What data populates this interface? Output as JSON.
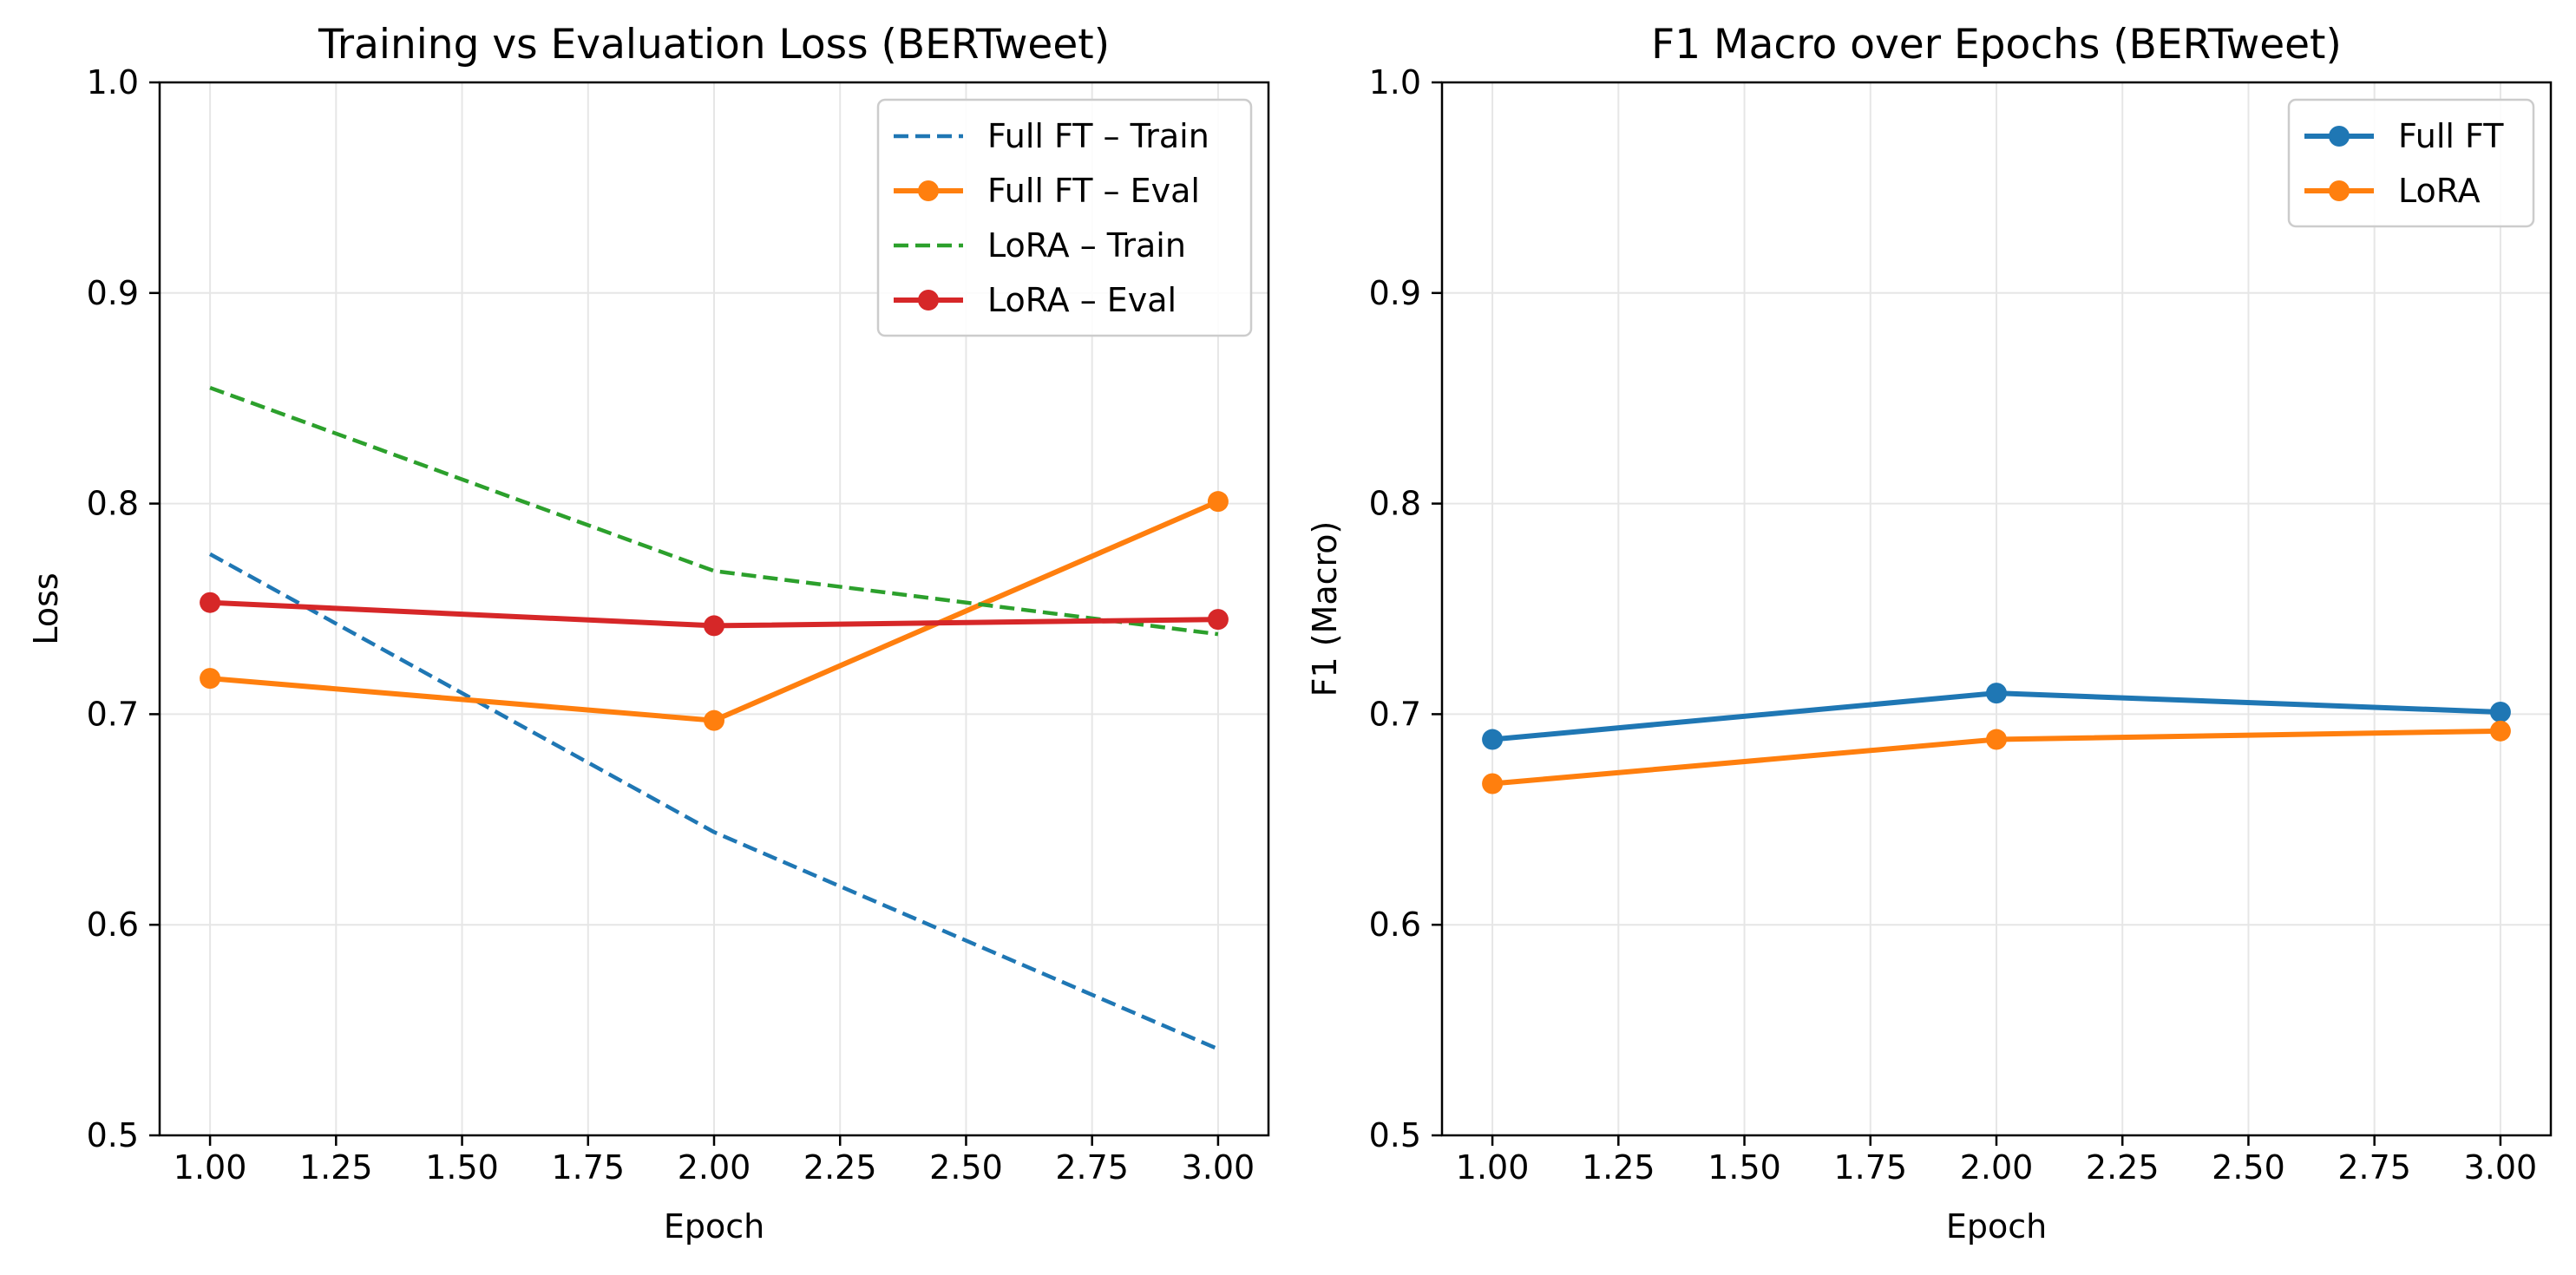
{
  "chart_data": [
    {
      "type": "line",
      "title": "Training vs Evaluation Loss (BERTweet)",
      "xlabel": "Epoch",
      "ylabel": "Loss",
      "xlim": [
        0.9,
        3.1
      ],
      "ylim": [
        0.5,
        1.0
      ],
      "xticks": [
        "1.00",
        "1.25",
        "1.50",
        "1.75",
        "2.00",
        "2.25",
        "2.50",
        "2.75",
        "3.00"
      ],
      "yticks": [
        "0.5",
        "0.6",
        "0.7",
        "0.8",
        "0.9",
        "1.0"
      ],
      "grid": true,
      "legend_position": "top-right",
      "series": [
        {
          "name": "Full FT – Train",
          "x": [
            1,
            2,
            3
          ],
          "values": [
            0.776,
            0.644,
            0.541
          ],
          "color": "#1f77b4",
          "style": "dashed",
          "markers": false
        },
        {
          "name": "Full FT – Eval",
          "x": [
            1,
            2,
            3
          ],
          "values": [
            0.717,
            0.697,
            0.801
          ],
          "color": "#ff7f0e",
          "style": "solid",
          "markers": true
        },
        {
          "name": "LoRA – Train",
          "x": [
            1,
            2,
            3
          ],
          "values": [
            0.855,
            0.768,
            0.738
          ],
          "color": "#2ca02c",
          "style": "dashed",
          "markers": false
        },
        {
          "name": "LoRA – Eval",
          "x": [
            1,
            2,
            3
          ],
          "values": [
            0.753,
            0.742,
            0.745
          ],
          "color": "#d62728",
          "style": "solid",
          "markers": true
        }
      ]
    },
    {
      "type": "line",
      "title": "F1 Macro over Epochs (BERTweet)",
      "xlabel": "Epoch",
      "ylabel": "F1 (Macro)",
      "xlim": [
        0.9,
        3.1
      ],
      "ylim": [
        0.5,
        1.0
      ],
      "xticks": [
        "1.00",
        "1.25",
        "1.50",
        "1.75",
        "2.00",
        "2.25",
        "2.50",
        "2.75",
        "3.00"
      ],
      "yticks": [
        "0.5",
        "0.6",
        "0.7",
        "0.8",
        "0.9",
        "1.0"
      ],
      "grid": true,
      "legend_position": "top-right",
      "series": [
        {
          "name": "Full FT",
          "x": [
            1,
            2,
            3
          ],
          "values": [
            0.688,
            0.71,
            0.701
          ],
          "color": "#1f77b4",
          "style": "solid",
          "markers": true
        },
        {
          "name": "LoRA",
          "x": [
            1,
            2,
            3
          ],
          "values": [
            0.667,
            0.688,
            0.692
          ],
          "color": "#ff7f0e",
          "style": "solid",
          "markers": true
        }
      ]
    }
  ]
}
